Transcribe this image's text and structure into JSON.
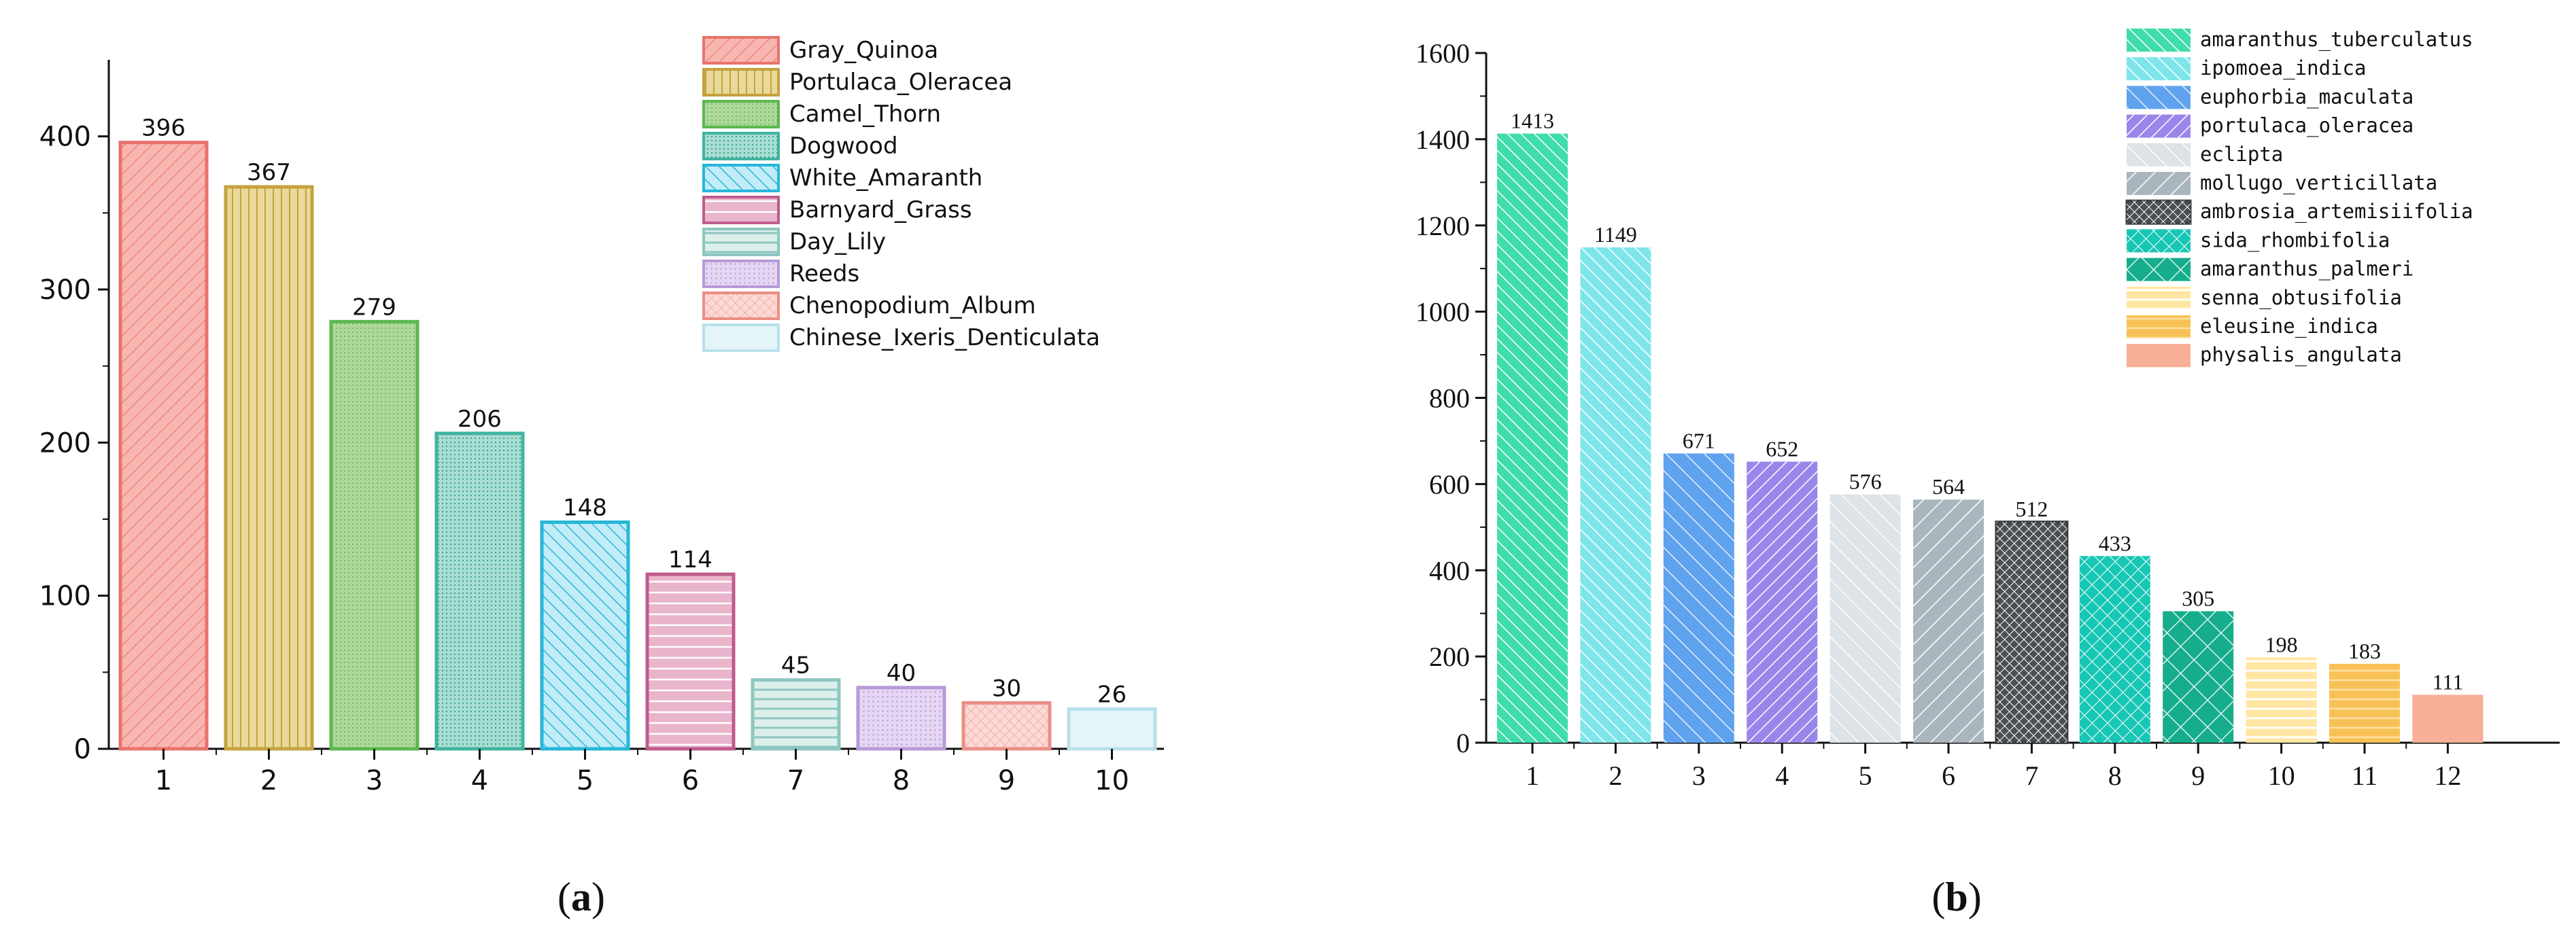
{
  "captions": {
    "a": "a",
    "b": "b"
  },
  "chart_data": [
    {
      "type": "bar",
      "title": "",
      "xlabel": "",
      "ylabel": "",
      "ylim": [
        0,
        450
      ],
      "yticks": [
        0,
        100,
        200,
        300,
        400
      ],
      "grid": false,
      "legend_position": "top-right",
      "categories": [
        "1",
        "2",
        "3",
        "4",
        "5",
        "6",
        "7",
        "8",
        "9",
        "10"
      ],
      "values": [
        396,
        367,
        279,
        206,
        148,
        114,
        45,
        40,
        30,
        26
      ],
      "series_labels": [
        "Gray_Quinoa",
        "Portulaca_Oleracea",
        "Camel_Thorn",
        "Dogwood",
        "White_Amaranth",
        "Barnyard_Grass",
        "Day_Lily",
        "Reeds",
        "Chenopodium_Album",
        "Chinese_Ixeris_Denticulata"
      ],
      "colors": [
        "#e8736c",
        "#c4a23e",
        "#5cb84f",
        "#3fb4a0",
        "#27b7d8",
        "#c05b8c",
        "#8ec6c0",
        "#b79ad8",
        "#eb8e85",
        "#b8e0ea"
      ],
      "fills": [
        "#f8b6b1",
        "#e9d99a",
        "#afd89b",
        "#a8ddd1",
        "#c2ecf7",
        "#e9b5cc",
        "#dcefeb",
        "#e5d7f3",
        "#fbd9d5",
        "#e4f4f8"
      ]
    },
    {
      "type": "bar",
      "title": "",
      "xlabel": "",
      "ylabel": "",
      "ylim": [
        0,
        1600
      ],
      "yticks": [
        0,
        200,
        400,
        600,
        800,
        1000,
        1200,
        1400,
        1600
      ],
      "grid": false,
      "legend_position": "top-right",
      "categories": [
        "1",
        "2",
        "3",
        "4",
        "5",
        "6",
        "7",
        "8",
        "9",
        "10",
        "11",
        "12"
      ],
      "values": [
        1413,
        1149,
        671,
        652,
        576,
        564,
        512,
        433,
        305,
        198,
        183,
        111
      ],
      "series_labels": [
        "amaranthus_tuberculatus",
        "ipomoea_indica",
        "euphorbia_maculata",
        "portulaca_oleracea",
        "eclipta",
        "mollugo_verticillata",
        "ambrosia_artemisiifolia",
        "sida_rhombifolia",
        "amaranthus_palmeri",
        "senna_obtusifolia",
        "eleusine_indica",
        "physalis_angulata"
      ],
      "colors": [
        "#3fdcac",
        "#7ee6ea",
        "#5fa2ee",
        "#9a86ea",
        "#dde3e6",
        "#aab6bd",
        "#4a4f55",
        "#18c6b6",
        "#16ad8c",
        "#ffe6a2",
        "#f8c156",
        "#f8ae97"
      ]
    }
  ]
}
